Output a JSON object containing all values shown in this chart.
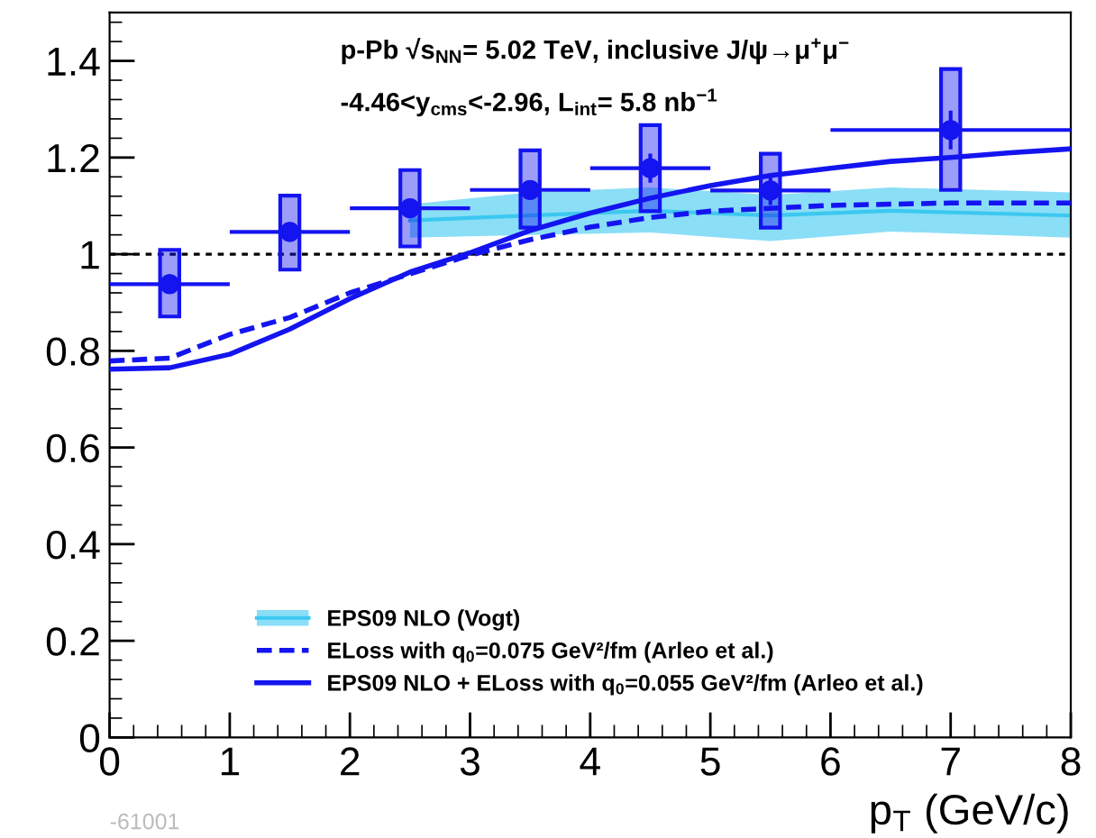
{
  "chart_data": {
    "type": "scatter",
    "title": "p-Pb √s$_{NN}$= 5.02 TeV, inclusive J/ψ→μ$^{+}$μ$^{−}$",
    "subtitle": "-4.46<y$_{cms}$<-2.96, L$_{int}$= 5.8 nb$^{−1}$",
    "xlabel": "p$_{T}$ (GeV/c)",
    "xlim": [
      0,
      8
    ],
    "xticks": [
      0,
      1,
      2,
      3,
      4,
      5,
      6,
      7,
      8
    ],
    "ylim": [
      0,
      1.5
    ],
    "yticks": [
      0,
      0.2,
      0.4,
      0.6,
      0.8,
      1,
      1.2,
      1.4
    ],
    "legend": "bottom",
    "grid": false,
    "annotations": [
      "-61001"
    ],
    "ref_lines": [
      {
        "axis": "y",
        "value": 1,
        "color": "#000000",
        "line_style": "dotted"
      }
    ],
    "series": [
      {
        "name": "EPS09 NLO (Vogt)",
        "type": "line",
        "line_style": "solid",
        "marker": "none",
        "color": "#3cc8f0",
        "x": [
          2.5,
          3.5,
          4.5,
          5.5,
          6.5,
          8
        ],
        "values": [
          1.07,
          1.08,
          1.09,
          1.08,
          1.09,
          1.08
        ],
        "lower": [
          1.034,
          1.04,
          1.045,
          1.027,
          1.047,
          1.034
        ],
        "upper": [
          1.103,
          1.128,
          1.138,
          1.123,
          1.138,
          1.128
        ]
      },
      {
        "name": "ELoss with q$_{0}$=0.075 GeV²/fm (Arleo et al.)",
        "type": "line",
        "line_style": "dashed",
        "marker": "none",
        "color": "#1414f0",
        "x": [
          0,
          0.5,
          1,
          1.5,
          2,
          2.5,
          3,
          3.5,
          4,
          4.5,
          5,
          6,
          7,
          8
        ],
        "values": [
          0.779,
          0.785,
          0.834,
          0.869,
          0.92,
          0.959,
          0.998,
          1.03,
          1.056,
          1.076,
          1.089,
          1.101,
          1.106,
          1.106
        ]
      },
      {
        "name": "EPS09 NLO + ELoss with q$_{0}$=0.055 GeV²/fm (Arleo et al.)",
        "type": "line",
        "line_style": "solid",
        "marker": "none",
        "color": "#1414f0",
        "x": [
          0,
          0.5,
          1,
          1.5,
          2,
          2.5,
          3,
          3.5,
          4,
          4.5,
          5,
          5.5,
          6,
          6.5,
          7,
          7.5,
          8
        ],
        "values": [
          0.762,
          0.765,
          0.793,
          0.845,
          0.908,
          0.963,
          1.003,
          1.049,
          1.085,
          1.116,
          1.142,
          1.163,
          1.178,
          1.192,
          1.2,
          1.21,
          1.218
        ]
      },
      {
        "type": "bar",
        "color": "#1414f0",
        "x": [
          0.5,
          1.5,
          2.5,
          3.5,
          4.5,
          5.5,
          7
        ],
        "base": [
          0.871,
          0.968,
          1.016,
          1.055,
          1.089,
          1.055,
          1.133
        ],
        "values": [
          0.138,
          0.153,
          0.158,
          0.16,
          0.178,
          0.153,
          0.25
        ]
      },
      {
        "marker": "circle",
        "color": "#1414f0",
        "x": [
          0.5,
          1.5,
          2.5,
          3.5,
          4.5,
          5.5,
          7
        ],
        "values": [
          0.938,
          1.046,
          1.095,
          1.133,
          1.178,
          1.132,
          1.257
        ],
        "errors": [
          0.02,
          0.02,
          0.02,
          0.02,
          0.03,
          0.03,
          0.04
        ],
        "xerrors": [
          0.5,
          0.5,
          0.5,
          0.5,
          0.5,
          0.5,
          1
        ]
      }
    ]
  }
}
